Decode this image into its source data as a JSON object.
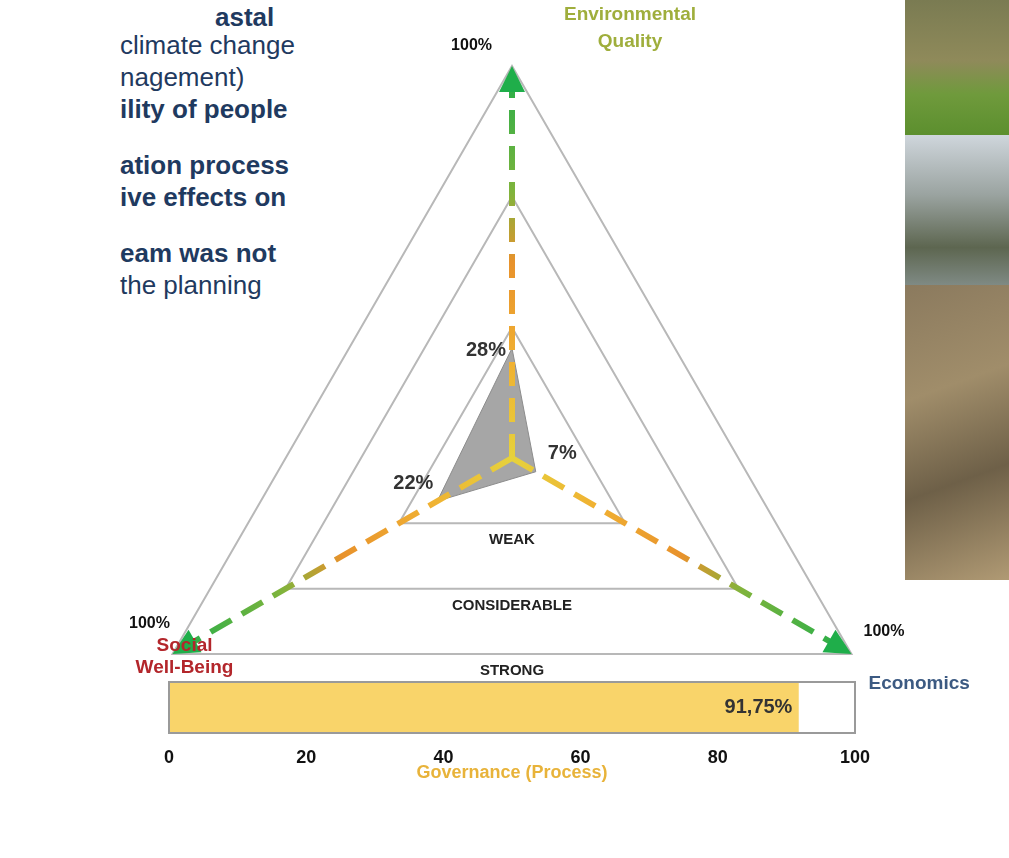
{
  "side_text": [
    "astal",
    "climate change",
    "nagement)",
    "ility of people",
    "ation process",
    "ive effects on",
    "eam was not",
    "the planning"
  ],
  "chart_data": [
    {
      "type": "radar",
      "categories": [
        "Environmental Quality",
        "Economics",
        "Social Well-Being"
      ],
      "values": [
        28,
        7,
        22
      ],
      "value_labels": [
        "28%",
        "7%",
        "22%"
      ],
      "rlim": [
        0,
        100
      ],
      "rticks": [
        {
          "value": 33.3,
          "label": "WEAK"
        },
        {
          "value": 66.7,
          "label": "CONSIDERABLE"
        },
        {
          "value": 100,
          "label": "STRONG"
        }
      ],
      "axis_end_labels": [
        "100%",
        "100%",
        "100%"
      ],
      "color": "#a6a6a6",
      "grid": true,
      "data_labels": true
    },
    {
      "type": "bar",
      "orientation": "horizontal",
      "categories": [
        null
      ],
      "values": [
        91.75
      ],
      "value_labels": [
        "91,75%"
      ],
      "x_label": "Governance (Process)",
      "xlim": [
        0,
        100
      ],
      "xticks": [
        0,
        20,
        40,
        60,
        80,
        100
      ],
      "color": "#f9d46a",
      "grid": true,
      "data_labels": true,
      "tick_labels": "x"
    }
  ]
}
